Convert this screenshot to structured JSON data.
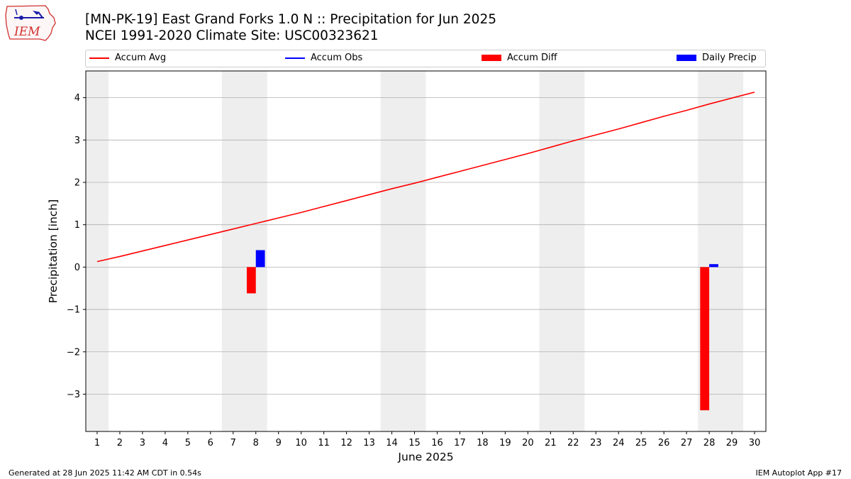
{
  "header": {
    "title_line1": "[MN-PK-19] East Grand Forks 1.0 N :: Precipitation for Jun 2025",
    "title_line2": "NCEI 1991-2020 Climate Site: USC00323621"
  },
  "logo": {
    "text": "IEM"
  },
  "legend": {
    "items": [
      {
        "label": "Accum Avg",
        "color": "#ff0000",
        "kind": "line"
      },
      {
        "label": "Accum Obs",
        "color": "#0000ff",
        "kind": "line"
      },
      {
        "label": "Accum Diff",
        "color": "#ff0000",
        "kind": "bar"
      },
      {
        "label": "Daily Precip",
        "color": "#0000ff",
        "kind": "bar"
      }
    ]
  },
  "footer": {
    "left": "Generated at 28 Jun 2025 11:42 AM CDT in 0.54s",
    "right": "IEM Autoplot App #17"
  },
  "chart_data": {
    "type": "bar",
    "xlabel": "June 2025",
    "ylabel": "Precipitation [inch]",
    "xlim": [
      0.5,
      30.5
    ],
    "ylim": [
      -3.88,
      4.63
    ],
    "yticks": [
      -3,
      -2,
      -1,
      0,
      1,
      2,
      3,
      4
    ],
    "ytick_labels": [
      "−3",
      "−2",
      "−1",
      "0",
      "1",
      "2",
      "3",
      "4"
    ],
    "xticks": [
      1,
      2,
      3,
      4,
      5,
      6,
      7,
      8,
      9,
      10,
      11,
      12,
      13,
      14,
      15,
      16,
      17,
      18,
      19,
      20,
      21,
      22,
      23,
      24,
      25,
      26,
      27,
      28,
      29,
      30
    ],
    "grid": "horizontal",
    "weekend_shading": [
      [
        0.5,
        1.5
      ],
      [
        6.5,
        8.5
      ],
      [
        13.5,
        15.5
      ],
      [
        20.5,
        22.5
      ],
      [
        27.5,
        29.5
      ]
    ],
    "series": [
      {
        "name": "Accum Avg",
        "kind": "line",
        "color": "#ff0000",
        "x": [
          1,
          2,
          3,
          4,
          5,
          6,
          7,
          8,
          9,
          10,
          11,
          12,
          13,
          14,
          15,
          16,
          17,
          18,
          19,
          20,
          21,
          22,
          23,
          24,
          25,
          26,
          27,
          28,
          29,
          30
        ],
        "values": [
          0.13,
          0.25,
          0.38,
          0.51,
          0.64,
          0.77,
          0.9,
          1.03,
          1.16,
          1.29,
          1.43,
          1.57,
          1.71,
          1.85,
          1.98,
          2.12,
          2.26,
          2.4,
          2.54,
          2.68,
          2.83,
          2.98,
          3.12,
          3.26,
          3.41,
          3.56,
          3.7,
          3.85,
          3.99,
          4.13
        ]
      },
      {
        "name": "Accum Diff",
        "kind": "bar",
        "color": "#ff0000",
        "x": [
          8,
          28
        ],
        "values": [
          -0.62,
          -3.38
        ]
      },
      {
        "name": "Daily Precip",
        "kind": "bar",
        "color": "#0000ff",
        "x": [
          8,
          28
        ],
        "values": [
          0.4,
          0.07
        ]
      }
    ]
  }
}
